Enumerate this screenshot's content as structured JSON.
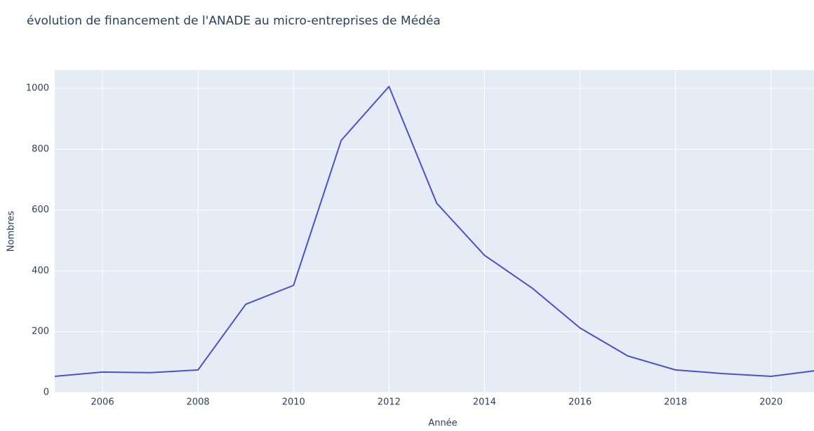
{
  "chart_data": {
    "type": "line",
    "title": "évolution de financement de l'ANADE au micro-entreprises de Médéa",
    "x_label": "Année",
    "y_label": "Nombres",
    "x": [
      2005,
      2006,
      2007,
      2008,
      2009,
      2010,
      2011,
      2012,
      2013,
      2014,
      2015,
      2016,
      2017,
      2018,
      2019,
      2020,
      2021
    ],
    "values": [
      53,
      67,
      65,
      74,
      290,
      352,
      829,
      1006,
      622,
      451,
      343,
      212,
      120,
      74,
      62,
      53,
      73
    ],
    "color": "#4b50cc",
    "xlim": [
      2005,
      2020.9
    ],
    "xticks": [
      2006,
      2008,
      2010,
      2012,
      2014,
      2016,
      2018,
      2020
    ],
    "ylim": [
      0,
      1060
    ],
    "yticks": [
      0,
      200,
      400,
      600,
      800,
      1000
    ],
    "grid": true
  }
}
